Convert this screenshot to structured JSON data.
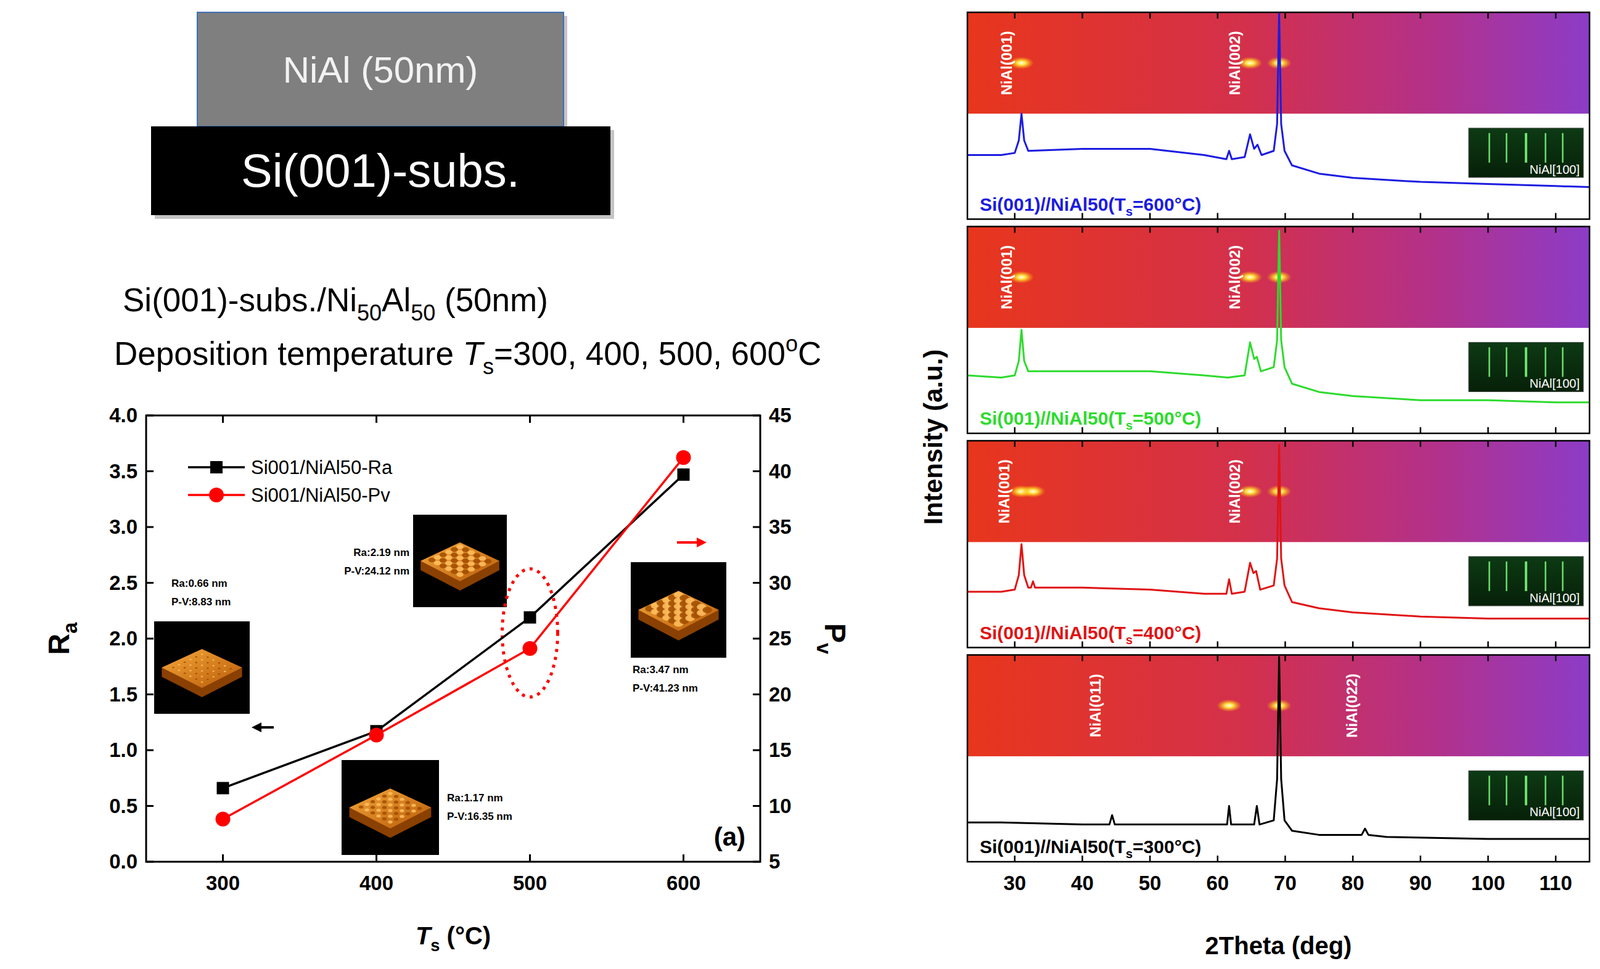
{
  "schematic": {
    "layers": [
      {
        "label": "NiAl (50nm)"
      },
      {
        "label": "Si(001)-subs."
      }
    ]
  },
  "captions": [
    [
      {
        "text": "Si(001)-subs./Ni"
      },
      {
        "text": "50",
        "style": "sub"
      },
      {
        "text": "Al"
      },
      {
        "text": "50",
        "style": "sub"
      },
      {
        "text": " (50nm)"
      }
    ],
    [
      {
        "text": "Deposition temperature "
      },
      {
        "text": "T",
        "style": "italic"
      },
      {
        "text": "s",
        "style": "sub"
      },
      {
        "text": "=300, 400, 500, 600"
      },
      {
        "text": "o",
        "style": "sup"
      },
      {
        "text": "C"
      }
    ]
  ],
  "chart_data": [
    {
      "type": "line",
      "x": [
        300,
        400,
        500,
        600
      ],
      "xlim": [
        250,
        650
      ],
      "xticks": [
        300,
        400,
        500,
        600
      ],
      "xlabel": [
        {
          "text": "T",
          "style": "italic"
        },
        {
          "text": "s",
          "style": "sub"
        },
        {
          "text": " (°C)"
        }
      ],
      "ylabel": [
        {
          "text": "R"
        },
        {
          "text": "a",
          "style": "sub"
        }
      ],
      "y2label": [
        {
          "text": "P"
        },
        {
          "text": "v",
          "style": "sub"
        }
      ],
      "ylim": [
        0,
        4
      ],
      "yticks": [
        {
          "value": 0,
          "label": "0.0"
        },
        {
          "value": 0.5,
          "label": "0.5"
        },
        {
          "value": 1,
          "label": "1.0"
        },
        {
          "value": 1.5,
          "label": "1.5"
        },
        {
          "value": 2,
          "label": "2.0"
        },
        {
          "value": 2.5,
          "label": "2.5"
        },
        {
          "value": 3,
          "label": "3.0"
        },
        {
          "value": 3.5,
          "label": "3.5"
        },
        {
          "value": 4,
          "label": "4.0"
        }
      ],
      "y2lim": [
        5,
        45
      ],
      "y2ticks": [
        5,
        10,
        15,
        20,
        25,
        30,
        35,
        40,
        45
      ],
      "series": [
        {
          "name": "Si001/NiAl50-Ra",
          "color": "#000000",
          "marker": "square",
          "values": [
            0.66,
            1.17,
            2.19,
            3.47
          ]
        },
        {
          "name": "Si001/NiAl50-Pv",
          "color": "#ff0000",
          "marker": "circle",
          "axis": "y2",
          "values": [
            8.83,
            16.35,
            24.12,
            41.23
          ]
        }
      ],
      "legend": "upper left",
      "annotations": [
        {
          "lines": [
            "Ra:0.66 nm",
            "P-V:8.83 nm"
          ]
        },
        {
          "lines": [
            "Ra:1.17 nm",
            "P-V:16.35 nm"
          ]
        },
        {
          "lines": [
            "Ra:2.19 nm",
            "P-V:24.12 nm"
          ]
        },
        {
          "lines": [
            "Ra:3.47 nm",
            "P-V:41.23 nm"
          ]
        }
      ],
      "panel_label": "(a)"
    },
    {
      "type": "line",
      "ylabel": "Intensity (a.u.)",
      "x": [
        23,
        28,
        30,
        30.6,
        31,
        31.4,
        32,
        40,
        50,
        58,
        61.3,
        61.7,
        62.1,
        64,
        64.8,
        65.4,
        65.9,
        66.5,
        68.3,
        68.8,
        69.1,
        69.4,
        69.9,
        71,
        75,
        80,
        90,
        100,
        110,
        115
      ],
      "series": [
        {
          "name": [
            {
              "text": "Si(001)//NiAl50(T"
            },
            {
              "text": "s",
              "style": "sub"
            },
            {
              "text": "=600°C)"
            }
          ],
          "color": "#1c1ce0",
          "values": [
            31,
            31,
            32,
            38,
            51,
            38,
            33,
            34,
            34,
            31,
            29,
            33,
            29,
            30,
            41,
            34,
            36,
            31,
            33,
            46,
            100,
            46,
            33,
            26,
            22,
            20,
            18,
            17,
            16,
            15.5
          ]
        }
      ],
      "xlim": [
        23,
        115
      ],
      "xticks": [
        30,
        40,
        50,
        60,
        70,
        80,
        90,
        100,
        110
      ],
      "ylim": [
        0,
        100
      ],
      "tick_labels": false,
      "annotations": [
        {
          "text": "NiAl(001)",
          "x": 28.8
        },
        {
          "text": "NiAl(002)",
          "x": 62.6
        }
      ],
      "spots": [
        31,
        64.8,
        69.1
      ],
      "inset_label": "NiAl[100]"
    },
    {
      "type": "line",
      "x": [
        23,
        28,
        30,
        30.6,
        31,
        31.4,
        32,
        40,
        50,
        58,
        61.5,
        64,
        64.8,
        65.4,
        65.8,
        66.4,
        68.3,
        68.8,
        69.1,
        69.4,
        69.9,
        71,
        75,
        80,
        90,
        100,
        110,
        115
      ],
      "series": [
        {
          "name": [
            {
              "text": "Si(001)//NiAl50(T"
            },
            {
              "text": "s",
              "style": "sub"
            },
            {
              "text": "=500°C)"
            }
          ],
          "color": "#2edb2e",
          "values": [
            28,
            27,
            28,
            35,
            50,
            35,
            30,
            30,
            30,
            28,
            27,
            28,
            44,
            36,
            37,
            30,
            32,
            45,
            98,
            45,
            32,
            24,
            20,
            18,
            16,
            16,
            15,
            15
          ]
        }
      ],
      "xlim": [
        23,
        115
      ],
      "xticks": [
        30,
        40,
        50,
        60,
        70,
        80,
        90,
        100,
        110
      ],
      "ylim": [
        0,
        100
      ],
      "tick_labels": false,
      "annotations": [
        {
          "text": "NiAl(001)",
          "x": 28.8
        },
        {
          "text": "NiAl(002)",
          "x": 62.6
        }
      ],
      "spots": [
        31,
        64.8,
        69.1
      ],
      "inset_label": "NiAl[100]"
    },
    {
      "type": "line",
      "x": [
        23,
        28,
        30,
        30.6,
        31,
        31.4,
        32,
        32.4,
        32.7,
        33,
        40,
        50,
        58,
        61.3,
        61.7,
        62.1,
        64,
        64.8,
        65.3,
        65.7,
        66.3,
        68.3,
        68.8,
        69.1,
        69.4,
        69.9,
        71,
        75,
        80,
        90,
        100,
        110,
        115
      ],
      "series": [
        {
          "name": [
            {
              "text": "Si(001)//NiAl50(T"
            },
            {
              "text": "s",
              "style": "sub"
            },
            {
              "text": "=400°C)"
            }
          ],
          "color": "#e01414",
          "values": [
            27,
            27,
            28,
            35,
            50,
            35,
            29,
            29,
            32,
            29,
            29,
            28,
            26,
            26,
            33,
            26,
            27,
            41,
            36,
            37,
            28,
            30,
            43,
            98,
            43,
            30,
            22,
            19,
            17,
            15,
            14,
            14,
            14
          ]
        }
      ],
      "xlim": [
        23,
        115
      ],
      "xticks": [
        30,
        40,
        50,
        60,
        70,
        80,
        90,
        100,
        110
      ],
      "ylim": [
        0,
        100
      ],
      "tick_labels": false,
      "annotations": [
        {
          "text": "NiAl(001)",
          "x": 28.5
        },
        {
          "text": "NiAl(002)",
          "x": 62.6
        }
      ],
      "spots": [
        31,
        32.7,
        64.8,
        69.1
      ],
      "inset_label": "NiAl[100]"
    },
    {
      "type": "line",
      "xlabel": "2Theta (deg)",
      "x": [
        23,
        28,
        40,
        44,
        44.4,
        44.8,
        50,
        60,
        61.4,
        61.7,
        62,
        65.4,
        65.8,
        66.2,
        68.3,
        68.8,
        69.1,
        69.4,
        69.9,
        71,
        75,
        80,
        81.3,
        81.8,
        82.3,
        85,
        100,
        110,
        115
      ],
      "series": [
        {
          "name": [
            {
              "text": "Si(001)//NiAl50(T"
            },
            {
              "text": "s",
              "style": "sub"
            },
            {
              "text": "=300°C)"
            }
          ],
          "color": "#000000",
          "values": [
            19,
            19,
            18,
            18,
            22.5,
            18,
            18,
            18,
            18,
            27,
            18,
            18,
            27,
            18,
            20,
            40,
            99,
            40,
            20,
            15,
            13,
            13,
            13,
            16,
            13,
            12,
            11,
            11,
            11
          ]
        }
      ],
      "xlim": [
        23,
        115
      ],
      "xticks": [
        30,
        40,
        50,
        60,
        70,
        80,
        90,
        100,
        110
      ],
      "ylim": [
        0,
        100
      ],
      "tick_labels": "x",
      "annotations": [
        {
          "text": "NiAl(011)",
          "x": 42
        },
        {
          "text": "NiAl(022)",
          "x": 79.9
        }
      ],
      "spots": [
        61.7,
        69.1
      ],
      "inset_label": "NiAl[100]"
    }
  ]
}
